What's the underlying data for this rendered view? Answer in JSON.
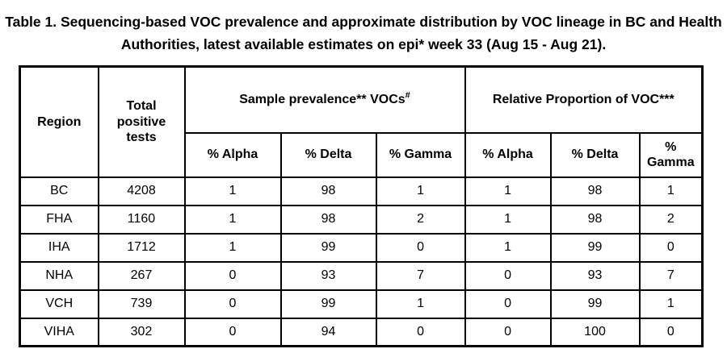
{
  "title": {
    "line1": "Table 1. Sequencing-based VOC prevalence and approximate distribution by VOC lineage in BC and Health",
    "line2": "Authorities, latest available estimates on epi* week 33 (Aug 15 - Aug 21)."
  },
  "table": {
    "columns": {
      "region": "Region",
      "total_positive_tests": "Total positive tests",
      "sample_prevalence_group": "Sample prevalence** VOCs",
      "sample_prevalence_sup": "#",
      "relative_proportion_group": "Relative Proportion of VOC***",
      "sub_headers": [
        "% Alpha",
        "% Delta",
        "% Gamma",
        "% Alpha",
        "% Delta",
        "% Gamma"
      ]
    },
    "rows": [
      {
        "region": "BC",
        "total": "4208",
        "values": [
          "1",
          "98",
          "1",
          "1",
          "98",
          "1"
        ]
      },
      {
        "region": "FHA",
        "total": "1160",
        "values": [
          "1",
          "98",
          "2",
          "1",
          "98",
          "2"
        ]
      },
      {
        "region": "IHA",
        "total": "1712",
        "values": [
          "1",
          "99",
          "0",
          "1",
          "99",
          "0"
        ]
      },
      {
        "region": "NHA",
        "total": "267",
        "values": [
          "0",
          "93",
          "7",
          "0",
          "93",
          "7"
        ]
      },
      {
        "region": "VCH",
        "total": "739",
        "values": [
          "0",
          "99",
          "1",
          "0",
          "99",
          "1"
        ]
      },
      {
        "region": "VIHA",
        "total": "302",
        "values": [
          "0",
          "94",
          "0",
          "0",
          "100",
          "0"
        ]
      }
    ]
  },
  "colors": {
    "text": "#000000",
    "border": "#000000",
    "background": "#ffffff"
  }
}
